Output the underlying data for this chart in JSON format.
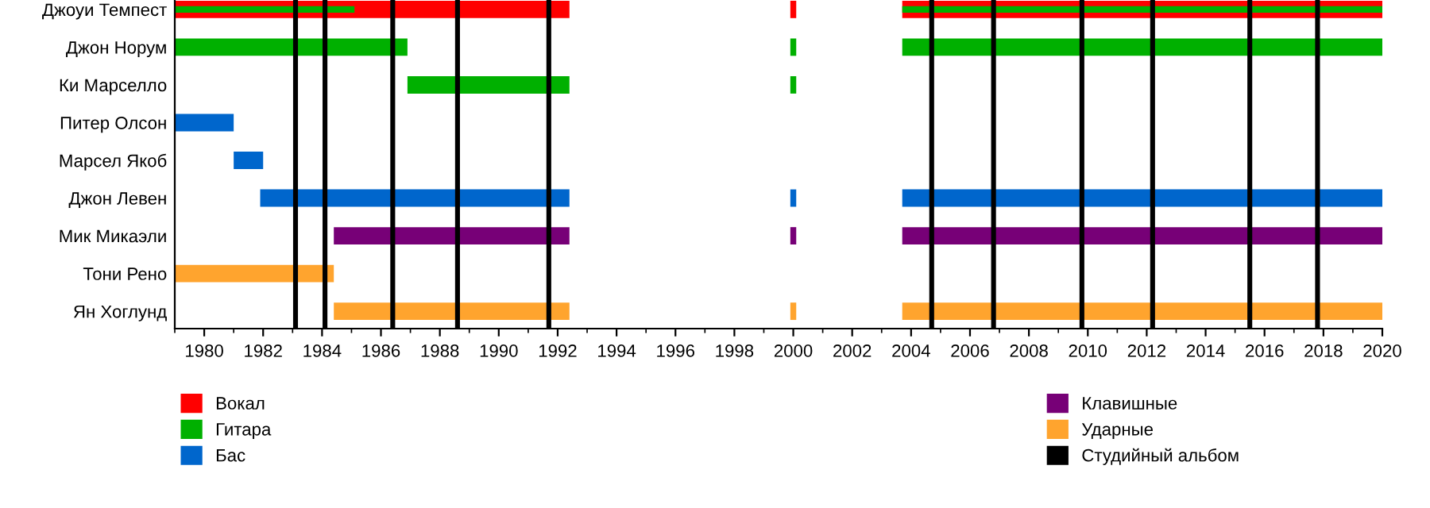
{
  "chart_data": {
    "type": "bar",
    "orientation": "horizontal",
    "categories": [
      "Джоуи Темпест",
      "Джон Норум",
      "Ки Марселло",
      "Питер Олсон",
      "Марсел Якоб",
      "Джон Левен",
      "Мик Микаэли",
      "Тони Рено",
      "Ян Хоглунд"
    ],
    "series": [
      {
        "name": "Вокал",
        "color": "#ff0000",
        "base": [
          1979,
          null,
          null,
          null,
          null,
          null,
          null,
          null,
          null
        ],
        "values": [
          13.4,
          null,
          null,
          null,
          null,
          null,
          null,
          null,
          null
        ]
      },
      {
        "name": "Гитара",
        "color": "#00b000",
        "base": [
          1979,
          1979,
          1986.9,
          null,
          null,
          null,
          null,
          null,
          null
        ],
        "values": [
          6.1,
          7.9,
          5.5,
          null,
          null,
          null,
          null,
          null,
          null
        ]
      },
      {
        "name": "Бас",
        "color": "#0066cc",
        "base": [
          null,
          null,
          null,
          1979,
          1981,
          1981.9,
          null,
          null,
          null
        ],
        "values": [
          null,
          null,
          null,
          2.0,
          1.0,
          10.5,
          null,
          null,
          null
        ]
      },
      {
        "name": "Клавишные",
        "color": "#770077",
        "base": [
          null,
          null,
          null,
          null,
          null,
          null,
          1984.4,
          null,
          null
        ],
        "values": [
          null,
          null,
          null,
          null,
          null,
          null,
          8.0,
          null,
          null
        ]
      },
      {
        "name": "Ударные",
        "color": "#ffa42e",
        "base": [
          null,
          null,
          null,
          null,
          null,
          null,
          null,
          1979,
          1984.4
        ],
        "values": [
          null,
          null,
          null,
          null,
          null,
          null,
          null,
          5.4,
          8.0
        ]
      },
      {
        "colors": [
          "#ff0000",
          "#00b000",
          "#00b000",
          null,
          null,
          "#0066cc",
          "#770077",
          null,
          "#ffa42e"
        ],
        "base": [
          1999.9,
          1999.9,
          1999.9,
          null,
          null,
          1999.9,
          1999.9,
          null,
          1999.9
        ],
        "values": [
          0.2,
          0.2,
          0.2,
          null,
          null,
          0.2,
          0.2,
          null,
          0.2
        ]
      },
      {
        "colors": [
          "#ff0000",
          "#00b000",
          null,
          null,
          null,
          "#0066cc",
          "#770077",
          null,
          "#ffa42e"
        ],
        "base": [
          2003.7,
          2003.7,
          null,
          null,
          null,
          2003.7,
          2003.7,
          null,
          2003.7
        ],
        "values": [
          16.3,
          16.3,
          null,
          null,
          null,
          16.3,
          16.3,
          null,
          16.3
        ]
      },
      {
        "color": "#00b000",
        "base": [
          2003.7,
          null,
          null,
          null,
          null,
          null,
          null,
          null,
          null
        ],
        "values": [
          16.3,
          null,
          null,
          null,
          null,
          null,
          null,
          null,
          null
        ]
      }
    ],
    "ref_lines": [
      {
        "axis": "x",
        "value": 1983.1,
        "label": "Студийный альбом",
        "color": "#000000"
      },
      {
        "axis": "x",
        "value": 1984.1,
        "color": "#000000"
      },
      {
        "axis": "x",
        "value": 1986.4,
        "color": "#000000"
      },
      {
        "axis": "x",
        "value": 1988.6,
        "color": "#000000"
      },
      {
        "axis": "x",
        "value": 1991.7,
        "color": "#000000"
      },
      {
        "axis": "x",
        "value": 2004.7,
        "color": "#000000"
      },
      {
        "axis": "x",
        "value": 2006.8,
        "color": "#000000"
      },
      {
        "axis": "x",
        "value": 2009.8,
        "color": "#000000"
      },
      {
        "axis": "x",
        "value": 2012.2,
        "color": "#000000"
      },
      {
        "axis": "x",
        "value": 2015.5,
        "color": "#000000"
      },
      {
        "axis": "x",
        "value": 2017.8,
        "color": "#000000"
      }
    ],
    "xlim": [
      1979,
      2020
    ],
    "xticks": [
      1980,
      1982,
      1984,
      1986,
      1988,
      1990,
      1992,
      1994,
      1996,
      1998,
      2000,
      2002,
      2004,
      2006,
      2008,
      2010,
      2012,
      2014,
      2016,
      2018,
      2020
    ],
    "grid": false,
    "legend": "bottom"
  }
}
